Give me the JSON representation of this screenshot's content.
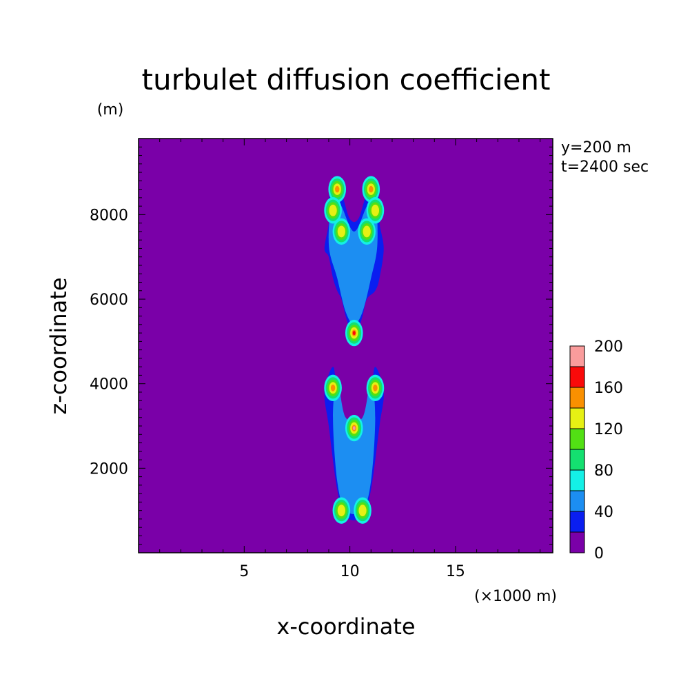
{
  "chart_data": {
    "type": "heatmap",
    "title": "turbulet diffusion coefficient",
    "xlabel": "x-coordinate",
    "ylabel": "z-coordinate",
    "x_unit": "(×1000 m)",
    "y_unit": "(m)",
    "annotations": [
      "y=200 m",
      "t=2400 sec"
    ],
    "xlim": [
      0,
      19.6
    ],
    "ylim": [
      0,
      9800
    ],
    "x_ticks": [
      5,
      10,
      15
    ],
    "y_ticks": [
      2000,
      4000,
      6000,
      8000
    ],
    "colorbar": {
      "min": 0,
      "max": 200,
      "step": 20,
      "labeled_ticks": [
        0,
        40,
        80,
        120,
        160,
        200
      ],
      "colors": [
        "#7a00a8",
        "#0a1ef0",
        "#1c8ef2",
        "#14f0e6",
        "#14e070",
        "#52e014",
        "#e6f014",
        "#fa9000",
        "#fa0a0a",
        "#fa9c9c"
      ]
    },
    "fields": [
      {
        "name": "upper-plume",
        "x": [
          8.8,
          9.0,
          9.0,
          9.2,
          9.6,
          10.0,
          10.4,
          10.8,
          11.2,
          11.4,
          11.4,
          11.6,
          11.4,
          11.2,
          10.8,
          10.6,
          10.4,
          10.2,
          10.0,
          9.8,
          9.6,
          9.4,
          9.2,
          9.0
        ],
        "z": [
          7200,
          7800,
          8300,
          8750,
          8500,
          7900,
          7900,
          8500,
          8750,
          8300,
          7800,
          7200,
          6500,
          6200,
          6000,
          5600,
          5300,
          5200,
          5300,
          5600,
          6000,
          6200,
          6500,
          7000
        ],
        "level": 20
      },
      {
        "name": "upper-plume-inner",
        "x": [
          9.0,
          9.2,
          9.6,
          10.2,
          10.8,
          11.2,
          11.3,
          11.0,
          10.6,
          10.2,
          9.8,
          9.4
        ],
        "z": [
          7300,
          8500,
          8200,
          7600,
          8200,
          8500,
          7300,
          6500,
          5700,
          5400,
          5700,
          6500
        ],
        "level": 40
      },
      {
        "name": "lower-plume",
        "x": [
          9.0,
          8.8,
          9.2,
          9.4,
          9.8,
          10.6,
          11.0,
          11.2,
          11.6,
          11.4,
          11.0,
          10.6,
          9.8,
          9.4
        ],
        "z": [
          3000,
          3800,
          4400,
          3800,
          3000,
          3000,
          3800,
          4400,
          3800,
          3000,
          1500,
          850,
          850,
          1500
        ],
        "level": 20
      },
      {
        "name": "lower-plume-inner",
        "x": [
          9.2,
          9.4,
          9.8,
          10.6,
          11.0,
          11.2,
          11.0,
          10.6,
          9.8,
          9.4
        ],
        "z": [
          3200,
          4100,
          3200,
          3200,
          4100,
          3200,
          1700,
          1000,
          1000,
          1700
        ],
        "level": 40
      }
    ],
    "peaks": [
      {
        "x": 9.4,
        "z": 8600,
        "value": 120
      },
      {
        "x": 11.0,
        "z": 8600,
        "value": 120
      },
      {
        "x": 9.2,
        "z": 8100,
        "value": 100
      },
      {
        "x": 11.2,
        "z": 8100,
        "value": 100
      },
      {
        "x": 9.6,
        "z": 7600,
        "value": 110
      },
      {
        "x": 10.8,
        "z": 7600,
        "value": 110
      },
      {
        "x": 10.2,
        "z": 5200,
        "value": 150
      },
      {
        "x": 9.2,
        "z": 3900,
        "value": 120
      },
      {
        "x": 11.2,
        "z": 3900,
        "value": 120
      },
      {
        "x": 10.2,
        "z": 2950,
        "value": 170
      },
      {
        "x": 9.6,
        "z": 1000,
        "value": 110
      },
      {
        "x": 10.6,
        "z": 1000,
        "value": 110
      }
    ]
  },
  "labels": {
    "title": "turbulet diffusion coefficient",
    "y_unit": "(m)",
    "annotation_y": "y=200 m",
    "annotation_t": "t=2400 sec",
    "x_unit": "(×1000 m)",
    "xlabel": "x-coordinate",
    "ylabel": "z-coordinate"
  }
}
